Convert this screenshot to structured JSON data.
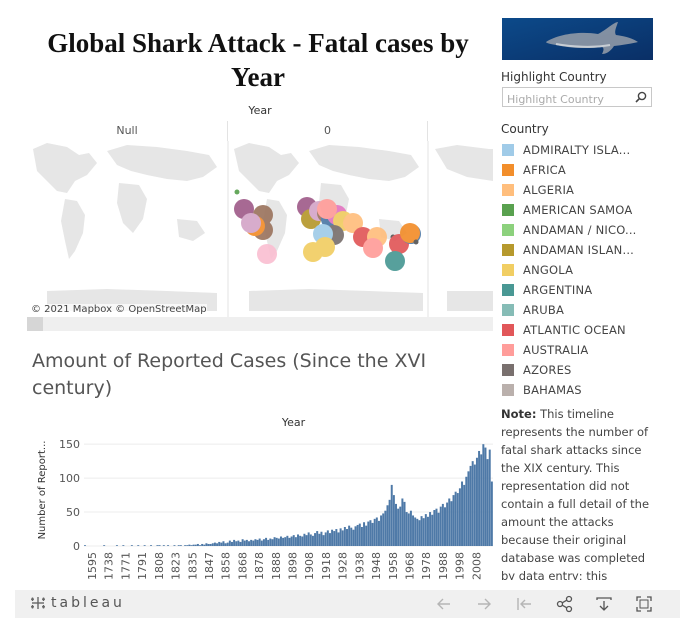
{
  "dashboard": {
    "title_line1": "Global Shark Attack - Fatal cases by",
    "title_line2": "Year"
  },
  "map": {
    "header": "Year",
    "columns": [
      "Null",
      "0"
    ],
    "attribution": "© 2021 Mapbox  © OpenStreetMap"
  },
  "cases": {
    "title": "Amount of Reported Cases (Since the XVI century)"
  },
  "chart_data": {
    "type": "bar",
    "title": "Year",
    "xlabel": "",
    "ylabel": "Number of Report...",
    "ylim": [
      0,
      165
    ],
    "yticks": [
      0,
      50,
      100,
      150
    ],
    "color": "#4e79a7",
    "xtick_labels": [
      "1595",
      "1738",
      "1771",
      "1791",
      "1808",
      "1823",
      "1835",
      "1847",
      "1858",
      "1868",
      "1878",
      "1888",
      "1898",
      "1908",
      "1918",
      "1928",
      "1938",
      "1948",
      "1958",
      "1968",
      "1978",
      "1988",
      "1998",
      "2008"
    ],
    "values": [
      1,
      0,
      0,
      0,
      0,
      0,
      0,
      0,
      0,
      1,
      0,
      0,
      0,
      0,
      0,
      1,
      0,
      0,
      1,
      0,
      0,
      0,
      1,
      0,
      0,
      1,
      0,
      0,
      1,
      0,
      0,
      1,
      0,
      0,
      1,
      1,
      0,
      1,
      0,
      1,
      0,
      0,
      1,
      0,
      1,
      1,
      0,
      1,
      1,
      2,
      1,
      2,
      2,
      3,
      1,
      3,
      2,
      4,
      3,
      3,
      4,
      5,
      4,
      6,
      5,
      7,
      4,
      5,
      8,
      6,
      9,
      7,
      8,
      6,
      10,
      8,
      9,
      7,
      9,
      8,
      10,
      9,
      11,
      8,
      10,
      12,
      9,
      11,
      10,
      13,
      12,
      11,
      14,
      12,
      13,
      15,
      12,
      14,
      16,
      13,
      17,
      15,
      14,
      18,
      16,
      20,
      17,
      15,
      19,
      22,
      18,
      21,
      16,
      20,
      23,
      19,
      24,
      22,
      25,
      20,
      26,
      23,
      28,
      25,
      30,
      27,
      24,
      29,
      31,
      33,
      28,
      35,
      30,
      36,
      38,
      34,
      40,
      42,
      37,
      45,
      48,
      52,
      60,
      68,
      90,
      75,
      62,
      55,
      58,
      70,
      65,
      50,
      48,
      52,
      45,
      42,
      40,
      38,
      44,
      41,
      47,
      43,
      50,
      46,
      53,
      55,
      49,
      58,
      62,
      57,
      64,
      70,
      66,
      75,
      80,
      78,
      85,
      95,
      90,
      102,
      110,
      118,
      125,
      120,
      130,
      140,
      135,
      150,
      145,
      128,
      142,
      95
    ]
  },
  "sidebar": {
    "highlight_label": "Highlight Country",
    "highlight_placeholder": "Highlight Country",
    "country_label": "Country",
    "countries": [
      {
        "name": "ADMIRALTY ISLA...",
        "color": "#a0cbe8"
      },
      {
        "name": "AFRICA",
        "color": "#f28e2b"
      },
      {
        "name": "ALGERIA",
        "color": "#ffbe7d"
      },
      {
        "name": "AMERICAN SAMOA",
        "color": "#59a14f"
      },
      {
        "name": "ANDAMAN / NICO...",
        "color": "#8cd17d"
      },
      {
        "name": "ANDAMAN ISLAN...",
        "color": "#b6992d"
      },
      {
        "name": "ANGOLA",
        "color": "#f1ce63"
      },
      {
        "name": "ARGENTINA",
        "color": "#499894"
      },
      {
        "name": "ARUBA",
        "color": "#86bcb6"
      },
      {
        "name": "ATLANTIC OCEAN",
        "color": "#e15759"
      },
      {
        "name": "AUSTRALIA",
        "color": "#ff9d9a"
      },
      {
        "name": "AZORES",
        "color": "#79706e"
      },
      {
        "name": "BAHAMAS",
        "color": "#bab0ac"
      }
    ],
    "note_label": "Note:",
    "note_text": " This timeline represents the number of fatal shark attacks since the XIX century. This representation did not contain a full detail of the amount the attacks because their original database was completed by data entry; this"
  },
  "toolbar": {
    "logo_text": "tableau"
  }
}
